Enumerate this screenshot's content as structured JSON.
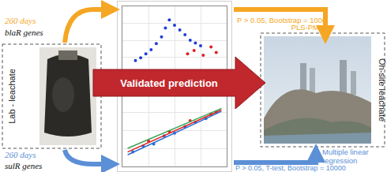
{
  "left_box": {
    "label": "Lab - leachate"
  },
  "right_box": {
    "label": "On-site leachate"
  },
  "center_arrow": {
    "label": "Validated prediction"
  },
  "top_path": {
    "days": "260 days",
    "genes": "blaR genes",
    "stats": "P > 0.05, Bootstrap = 1000",
    "method": "PLS-PM",
    "color": "#f5a623"
  },
  "bottom_path": {
    "days": "260 days",
    "genes": "sulR genes",
    "stats": "P > 0.05, T-test, Bootstrap = 10000",
    "method": "Multiple linear regression",
    "color": "#5b8fd6"
  },
  "chart_data": [
    {
      "type": "scatter",
      "xlim": [
        0,
        8
      ],
      "ylim": [
        0,
        10
      ],
      "xticks": [
        0,
        2,
        4,
        6,
        8
      ],
      "yticks": [
        0,
        2.5,
        5,
        7.5,
        10
      ],
      "grid": true,
      "tick_labels": false,
      "series": [
        {
          "type": "scatter",
          "color": "#1f3fd6",
          "marker": "circle",
          "x": [
            1,
            1.4,
            1.8,
            2.2,
            2.6,
            3,
            3.3,
            3.6,
            4,
            4.4,
            4.8,
            5.2,
            5.6,
            6
          ],
          "y": [
            2,
            2.4,
            3,
            3.6,
            4.5,
            5.5,
            6.8,
            8,
            7.2,
            6.5,
            5.8,
            5,
            4.6,
            4.2
          ]
        },
        {
          "type": "scatter",
          "color": "#e02020",
          "marker": "circle",
          "x": [
            5,
            5.5,
            6.2,
            6.8,
            7.2
          ],
          "y": [
            3,
            3.5,
            2.8,
            4,
            3.2
          ]
        }
      ]
    },
    {
      "type": "scatter",
      "xlim": [
        0,
        10
      ],
      "ylim": [
        0,
        10
      ],
      "xticks": [
        0,
        2.5,
        5,
        7.5,
        10
      ],
      "yticks": [
        0,
        2.5,
        5,
        7.5,
        10
      ],
      "grid": true,
      "tick_labels": false,
      "series": [
        {
          "type": "scatter",
          "color": "#2a6fd4",
          "marker": "circle",
          "x": [
            1,
            2,
            3,
            4,
            5,
            6,
            7,
            8,
            9
          ],
          "y": [
            2,
            2.8,
            3.1,
            4.2,
            4.6,
            5.5,
            6.1,
            6.6,
            7.5
          ]
        },
        {
          "type": "scatter",
          "color": "#e02020",
          "marker": "circle",
          "x": [
            2.5,
            4.5,
            6.5,
            8.5
          ],
          "y": [
            3.5,
            4.8,
            6.3,
            7.2
          ]
        },
        {
          "type": "line",
          "color": "#3aa655",
          "x": [
            0.5,
            9.5
          ],
          "y": [
            2.5,
            8
          ]
        },
        {
          "type": "line",
          "color": "#2a6fd4",
          "x": [
            0.5,
            9.5
          ],
          "y": [
            1.6,
            7.6
          ]
        },
        {
          "type": "line",
          "color": "#e02020",
          "x": [
            0.5,
            9.5
          ],
          "y": [
            2,
            7.8
          ]
        }
      ]
    }
  ]
}
